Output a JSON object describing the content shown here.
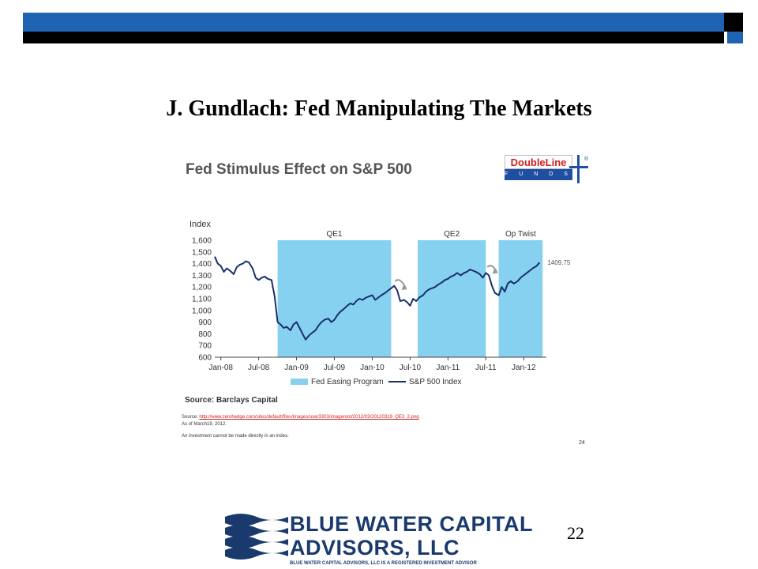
{
  "slide": {
    "title": "J. Gundlach: Fed Manipulating The Markets",
    "page_number": "22"
  },
  "doubleline_logo": {
    "name": "DoubleLine",
    "sub": "F U N D S",
    "reg": "®"
  },
  "source": {
    "main": "Source: Barclays Capital",
    "small_prefix": "Source: ",
    "small_link": "http://www.zerohedge.com/sites/default/files/images/user3303/imageroot/2012/03/20120319_QE3_2.png",
    "as_of": "As of March19, 2012.",
    "disclaimer": "An investment cannot be made directly in an index.",
    "inner_page": "24"
  },
  "footer_logo": {
    "line1": "BLUE WATER CAPITAL",
    "line2": "ADVISORS, LLC",
    "tagline": "BLUE WATER CAPITAL ADVISORS, LLC IS A REGISTERED INVESTMENT ADVISOR"
  },
  "chart_data": {
    "type": "line",
    "title": "Fed Stimulus Effect on S&P 500",
    "ylabel": "Index",
    "ylim": [
      600,
      1600
    ],
    "yticks": [
      "1,600",
      "1,500",
      "1,400",
      "1,300",
      "1,200",
      "1,100",
      "1,000",
      "900",
      "800",
      "700",
      "600"
    ],
    "xlim": [
      2007.92,
      2012.3
    ],
    "xticks": [
      {
        "label": "Jan-08",
        "t": 2008.0
      },
      {
        "label": "Jul-08",
        "t": 2008.5
      },
      {
        "label": "Jan-09",
        "t": 2009.0
      },
      {
        "label": "Jul-09",
        "t": 2009.5
      },
      {
        "label": "Jan-10",
        "t": 2010.0
      },
      {
        "label": "Jul-10",
        "t": 2010.5
      },
      {
        "label": "Jan-11",
        "t": 2011.0
      },
      {
        "label": "Jul-11",
        "t": 2011.5
      },
      {
        "label": "Jan-12",
        "t": 2012.0
      }
    ],
    "easing_periods": [
      {
        "label": "QE1",
        "start": 2008.75,
        "end": 2010.25
      },
      {
        "label": "QE2",
        "start": 2010.6,
        "end": 2011.5
      },
      {
        "label": "Op Twist",
        "start": 2011.67,
        "end": 2012.25
      }
    ],
    "legend": {
      "easing": "Fed Easing Program",
      "index": "S&P 500 Index",
      "position": "bottom"
    },
    "last_value_label": "1409.75",
    "colors": {
      "easing": "#86d0f0",
      "index": "#1a2f6e",
      "arrow": "#999999"
    },
    "series": [
      {
        "name": "S&P 500 Index",
        "x": [
          2007.92,
          2007.96,
          2008.0,
          2008.04,
          2008.08,
          2008.12,
          2008.17,
          2008.21,
          2008.25,
          2008.29,
          2008.33,
          2008.37,
          2008.42,
          2008.46,
          2008.5,
          2008.54,
          2008.58,
          2008.62,
          2008.67,
          2008.71,
          2008.75,
          2008.79,
          2008.83,
          2008.87,
          2008.92,
          2008.96,
          2009.0,
          2009.04,
          2009.08,
          2009.12,
          2009.17,
          2009.21,
          2009.25,
          2009.29,
          2009.33,
          2009.37,
          2009.42,
          2009.46,
          2009.5,
          2009.54,
          2009.58,
          2009.62,
          2009.67,
          2009.71,
          2009.75,
          2009.79,
          2009.83,
          2009.87,
          2009.92,
          2009.96,
          2010.0,
          2010.04,
          2010.08,
          2010.12,
          2010.17,
          2010.21,
          2010.25,
          2010.29,
          2010.33,
          2010.37,
          2010.42,
          2010.46,
          2010.5,
          2010.54,
          2010.58,
          2010.62,
          2010.67,
          2010.71,
          2010.75,
          2010.79,
          2010.83,
          2010.87,
          2010.92,
          2010.96,
          2011.0,
          2011.04,
          2011.08,
          2011.12,
          2011.17,
          2011.21,
          2011.25,
          2011.29,
          2011.33,
          2011.37,
          2011.42,
          2011.46,
          2011.5,
          2011.54,
          2011.58,
          2011.62,
          2011.67,
          2011.71,
          2011.75,
          2011.79,
          2011.83,
          2011.87,
          2011.92,
          2011.96,
          2012.0,
          2012.04,
          2012.08,
          2012.12,
          2012.17,
          2012.21
        ],
        "y": [
          1460,
          1400,
          1380,
          1330,
          1360,
          1340,
          1310,
          1370,
          1390,
          1400,
          1420,
          1410,
          1360,
          1280,
          1260,
          1280,
          1290,
          1270,
          1260,
          1120,
          900,
          880,
          850,
          860,
          830,
          880,
          900,
          850,
          800,
          750,
          790,
          810,
          830,
          870,
          900,
          920,
          930,
          900,
          920,
          960,
          990,
          1010,
          1040,
          1060,
          1050,
          1080,
          1100,
          1090,
          1110,
          1120,
          1130,
          1090,
          1110,
          1130,
          1150,
          1170,
          1190,
          1210,
          1170,
          1080,
          1090,
          1070,
          1040,
          1100,
          1080,
          1110,
          1130,
          1160,
          1180,
          1190,
          1200,
          1220,
          1240,
          1260,
          1270,
          1290,
          1300,
          1320,
          1300,
          1320,
          1330,
          1350,
          1340,
          1330,
          1310,
          1280,
          1320,
          1300,
          1210,
          1150,
          1130,
          1200,
          1160,
          1230,
          1250,
          1230,
          1250,
          1280,
          1300,
          1320,
          1340,
          1360,
          1380,
          1409.75
        ]
      }
    ]
  }
}
